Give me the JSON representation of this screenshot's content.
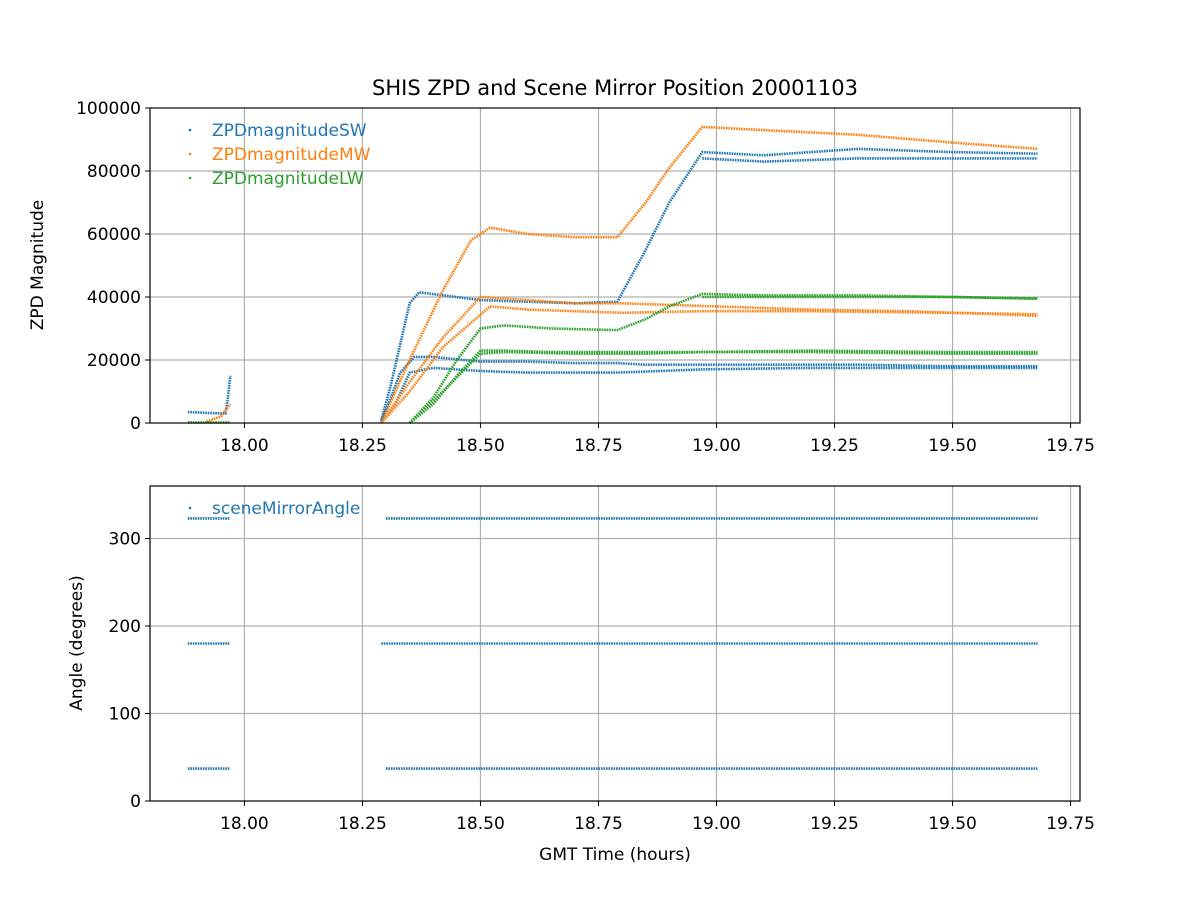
{
  "chart_data": [
    {
      "type": "scatter",
      "title": "SHIS ZPD and Scene Mirror Position 20001103",
      "xlabel": "",
      "ylabel": "ZPD Magnitude",
      "xlim": [
        17.8,
        19.77
      ],
      "ylim": [
        0,
        100000
      ],
      "xticks": [
        18.0,
        18.25,
        18.5,
        18.75,
        19.0,
        19.25,
        19.5,
        19.75
      ],
      "xtick_labels": [
        "18.00",
        "18.25",
        "18.50",
        "18.75",
        "19.00",
        "19.25",
        "19.50",
        "19.75"
      ],
      "yticks": [
        0,
        20000,
        40000,
        60000,
        80000,
        100000
      ],
      "ytick_labels": [
        "0",
        "20000",
        "40000",
        "60000",
        "80000",
        "100000"
      ],
      "grid": true,
      "legend_position": "top-left",
      "series": [
        {
          "name": "ZPDmagnitudeSW",
          "color": "#1f77b4",
          "segments": [
            {
              "x": [
                17.88,
                17.92,
                17.96,
                17.965,
                17.97
              ],
              "y": [
                3500,
                3200,
                3000,
                8000,
                15000
              ]
            },
            {
              "x": [
                18.29,
                18.31,
                18.33,
                18.35,
                18.37,
                18.5,
                18.6,
                18.7,
                18.79,
                18.85,
                18.9,
                18.97,
                19.1,
                19.3,
                19.5,
                19.68
              ],
              "y": [
                1000,
                12000,
                25000,
                38000,
                41500,
                39000,
                38500,
                38000,
                38500,
                55000,
                70000,
                86000,
                85000,
                87000,
                86000,
                85500
              ]
            },
            {
              "x": [
                18.29,
                18.31,
                18.33,
                18.36,
                18.4,
                18.5,
                18.6,
                18.7,
                18.79,
                18.85,
                18.9,
                18.97,
                19.1,
                19.3,
                19.5,
                19.68
              ],
              "y": [
                500,
                8000,
                16000,
                21000,
                21000,
                19500,
                19500,
                19000,
                19000,
                18500,
                18500,
                18500,
                18500,
                18500,
                18000,
                18000
              ]
            },
            {
              "x": [
                18.29,
                18.32,
                18.35,
                18.4,
                18.5,
                18.6,
                18.7,
                18.79,
                18.97,
                19.2,
                19.5,
                19.68
              ],
              "y": [
                0,
                6000,
                16000,
                17500,
                16500,
                16000,
                16000,
                16000,
                17000,
                17500,
                17500,
                17500
              ]
            },
            {
              "x": [
                18.97,
                19.1,
                19.3,
                19.5,
                19.68
              ],
              "y": [
                84000,
                83000,
                84000,
                84000,
                84000
              ]
            }
          ]
        },
        {
          "name": "ZPDmagnitudeMW",
          "color": "#ff7f0e",
          "segments": [
            {
              "x": [
                17.92,
                17.95,
                17.97
              ],
              "y": [
                500,
                2000,
                6000
              ]
            },
            {
              "x": [
                18.29,
                18.35,
                18.42,
                18.48,
                18.52,
                18.6,
                18.7,
                18.79,
                18.85,
                18.9,
                18.97,
                19.1,
                19.3,
                19.5,
                19.68
              ],
              "y": [
                0,
                20000,
                42000,
                58000,
                62000,
                60000,
                59000,
                59000,
                70000,
                81000,
                94000,
                93000,
                91500,
                89000,
                87000
              ]
            },
            {
              "x": [
                18.29,
                18.35,
                18.42,
                18.5,
                18.6,
                18.7,
                18.8,
                18.9,
                19.0,
                19.2,
                19.4,
                19.6,
                19.68
              ],
              "y": [
                0,
                13000,
                27000,
                40000,
                39000,
                38000,
                38000,
                37500,
                37000,
                36000,
                35500,
                34500,
                34000
              ]
            },
            {
              "x": [
                18.29,
                18.35,
                18.42,
                18.52,
                18.6,
                18.7,
                18.8,
                18.97,
                19.2,
                19.5,
                19.68
              ],
              "y": [
                0,
                10000,
                24000,
                37000,
                36000,
                35500,
                35000,
                35500,
                35500,
                35000,
                34500
              ]
            }
          ]
        },
        {
          "name": "ZPDmagnitudeLW",
          "color": "#2ca02c",
          "segments": [
            {
              "x": [
                17.88,
                17.97
              ],
              "y": [
                200,
                200
              ]
            },
            {
              "x": [
                18.35,
                18.4,
                18.45,
                18.5,
                18.55,
                18.65,
                18.79,
                18.85,
                18.9,
                18.97,
                19.1,
                19.3,
                19.5,
                19.68
              ],
              "y": [
                0,
                8000,
                20000,
                30000,
                31000,
                30000,
                29500,
                33000,
                37000,
                41000,
                40500,
                40500,
                40000,
                39500
              ]
            },
            {
              "x": [
                18.35,
                18.4,
                18.45,
                18.5,
                18.55,
                18.65,
                18.8,
                18.97,
                19.2,
                19.5,
                19.68
              ],
              "y": [
                0,
                6000,
                15000,
                23000,
                23000,
                22500,
                22500,
                22500,
                22500,
                22000,
                22000
              ]
            },
            {
              "x": [
                18.35,
                18.42,
                18.5,
                18.55,
                18.7,
                18.85,
                18.97,
                19.2,
                19.5,
                19.68
              ],
              "y": [
                0,
                10000,
                22000,
                22500,
                22000,
                22000,
                22500,
                23000,
                22500,
                22500
              ]
            },
            {
              "x": [
                18.97,
                19.3,
                19.5,
                19.68
              ],
              "y": [
                40000,
                40000,
                40000,
                39500
              ]
            }
          ]
        }
      ]
    },
    {
      "type": "scatter",
      "title": "",
      "xlabel": "GMT Time (hours)",
      "ylabel": "Angle (degrees)",
      "xlim": [
        17.8,
        19.77
      ],
      "ylim": [
        0,
        360
      ],
      "xticks": [
        18.0,
        18.25,
        18.5,
        18.75,
        19.0,
        19.25,
        19.5,
        19.75
      ],
      "xtick_labels": [
        "18.00",
        "18.25",
        "18.50",
        "18.75",
        "19.00",
        "19.25",
        "19.50",
        "19.75"
      ],
      "yticks": [
        0,
        100,
        200,
        300
      ],
      "ytick_labels": [
        "0",
        "100",
        "200",
        "300"
      ],
      "grid": true,
      "legend_position": "top-left",
      "series": [
        {
          "name": "sceneMirrorAngle",
          "color": "#1f77b4",
          "segments": [
            {
              "x": [
                17.88,
                17.97
              ],
              "y": [
                323,
                323
              ]
            },
            {
              "x": [
                18.3,
                19.68
              ],
              "y": [
                323,
                323
              ]
            },
            {
              "x": [
                17.88,
                17.97
              ],
              "y": [
                180,
                180
              ]
            },
            {
              "x": [
                18.29,
                19.68
              ],
              "y": [
                180,
                180
              ]
            },
            {
              "x": [
                17.88,
                17.97
              ],
              "y": [
                37,
                37
              ]
            },
            {
              "x": [
                18.3,
                19.68
              ],
              "y": [
                37,
                37
              ]
            }
          ]
        }
      ]
    }
  ]
}
